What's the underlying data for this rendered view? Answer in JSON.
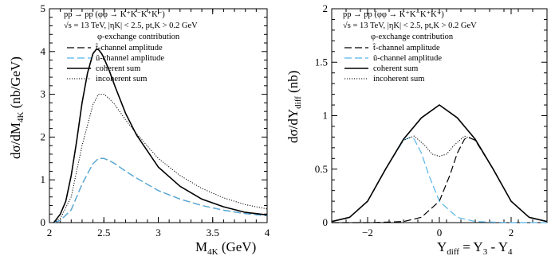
{
  "chart_data": [
    {
      "type": "line",
      "xlabel": "M4K (GeV)",
      "xlabel_main": "M",
      "xlabel_sub": "4K",
      "xlabel_unit": " (GeV)",
      "ylabel_main": "dσ/dM",
      "ylabel_sub": "4K",
      "ylabel_unit": " (nb/GeV)",
      "xlim": [
        2,
        4
      ],
      "ylim": [
        0,
        5
      ],
      "xticks": [
        "2",
        "2.5",
        "3",
        "3.5",
        "4"
      ],
      "yticks": [
        "0",
        "1",
        "2",
        "3",
        "4",
        "5"
      ],
      "legend_position": "top-left",
      "info": {
        "process": "pp → pp (φφ → K⁺K⁻K⁺K⁻)",
        "cuts": "√s = 13 TeV, |ηK| < 2.5, pt,K > 0.2 GeV",
        "subtitle": "φ-exchange contribution"
      },
      "series": [
        {
          "name": "t̂-channel amplitude",
          "style": "dashed",
          "color": "#000000",
          "x": [
            2.04,
            2.1,
            2.2,
            2.3,
            2.4,
            2.45,
            2.5,
            2.55,
            2.6,
            2.7,
            2.8,
            3.0,
            3.2,
            3.4,
            3.6,
            3.8,
            4.0
          ],
          "y": [
            0.0,
            0.05,
            0.3,
            0.9,
            1.38,
            1.5,
            1.5,
            1.45,
            1.38,
            1.2,
            1.04,
            0.75,
            0.55,
            0.4,
            0.29,
            0.21,
            0.16
          ]
        },
        {
          "name": "û-channel amplitude",
          "style": "dashed",
          "color": "#56b4e9",
          "x": [
            2.04,
            2.1,
            2.2,
            2.3,
            2.4,
            2.45,
            2.5,
            2.55,
            2.6,
            2.7,
            2.8,
            3.0,
            3.2,
            3.4,
            3.6,
            3.8,
            4.0
          ],
          "y": [
            0.0,
            0.05,
            0.3,
            0.9,
            1.38,
            1.5,
            1.5,
            1.45,
            1.38,
            1.2,
            1.04,
            0.75,
            0.55,
            0.4,
            0.29,
            0.21,
            0.16
          ]
        },
        {
          "name": "coherent sum",
          "style": "solid",
          "color": "#000000",
          "x": [
            2.04,
            2.1,
            2.15,
            2.2,
            2.25,
            2.3,
            2.35,
            2.4,
            2.43,
            2.45,
            2.48,
            2.5,
            2.55,
            2.6,
            2.7,
            2.8,
            3.0,
            3.2,
            3.4,
            3.6,
            3.8,
            4.0
          ],
          "y": [
            0.0,
            0.2,
            0.5,
            1.1,
            1.9,
            2.8,
            3.5,
            3.95,
            4.05,
            4.05,
            3.95,
            3.85,
            3.55,
            3.2,
            2.55,
            2.05,
            1.3,
            0.85,
            0.55,
            0.37,
            0.24,
            0.18
          ]
        },
        {
          "name": "incoherent sum",
          "style": "dotted",
          "color": "#000000",
          "x": [
            2.04,
            2.1,
            2.2,
            2.3,
            2.4,
            2.45,
            2.5,
            2.55,
            2.6,
            2.7,
            2.8,
            3.0,
            3.2,
            3.4,
            3.6,
            3.8,
            4.0
          ],
          "y": [
            0.0,
            0.1,
            0.6,
            1.8,
            2.76,
            3.0,
            3.0,
            2.9,
            2.76,
            2.4,
            2.08,
            1.5,
            1.1,
            0.8,
            0.58,
            0.42,
            0.32
          ]
        }
      ]
    },
    {
      "type": "line",
      "xlabel": "Ydiff = Y3 - Y4",
      "xlabel_main": "Y",
      "xlabel_sub": "diff",
      "xlabel_unit": " = Y",
      "xlabel_sub2": "3",
      "xlabel_unit2": " - Y",
      "xlabel_sub3": "4",
      "ylabel_main": "dσ/dY",
      "ylabel_sub": "diff",
      "ylabel_unit": " (nb)",
      "xlim": [
        -3,
        3
      ],
      "ylim": [
        0,
        2
      ],
      "xticks": [
        "−2",
        "0",
        "2"
      ],
      "xtick_values": [
        -2,
        0,
        2
      ],
      "yticks": [
        "0",
        "0.5",
        "1",
        "1.5",
        "2"
      ],
      "legend_position": "top-left",
      "info": {
        "process": "pp → pp (φφ → K⁺K⁻K⁺K⁻)",
        "cuts": "√s = 13 TeV, |ηK| < 2.5, pt,K > 0.2 GeV",
        "subtitle": "φ-exchange contribution"
      },
      "series": [
        {
          "name": "t̂-channel amplitude",
          "style": "dashed",
          "color": "#000000",
          "x": [
            -3,
            -2.0,
            -1.0,
            -0.5,
            0.0,
            0.3,
            0.5,
            0.7,
            0.8,
            1.0,
            1.5,
            2.0,
            2.5,
            3.0
          ],
          "y": [
            0.0,
            0.0,
            0.01,
            0.05,
            0.2,
            0.45,
            0.65,
            0.78,
            0.8,
            0.77,
            0.5,
            0.2,
            0.05,
            0.01
          ]
        },
        {
          "name": "û-channel amplitude",
          "style": "dashed",
          "color": "#56b4e9",
          "x": [
            -3,
            -2.5,
            -2.0,
            -1.5,
            -1.0,
            -0.8,
            -0.7,
            -0.5,
            -0.3,
            0.0,
            0.5,
            1.0,
            2.0,
            3.0
          ],
          "y": [
            0.01,
            0.05,
            0.2,
            0.5,
            0.77,
            0.8,
            0.78,
            0.65,
            0.45,
            0.2,
            0.05,
            0.01,
            0.0,
            0.0
          ]
        },
        {
          "name": "coherent sum",
          "style": "solid",
          "color": "#000000",
          "x": [
            -3,
            -2.5,
            -2.0,
            -1.5,
            -1.0,
            -0.5,
            0.0,
            0.5,
            1.0,
            1.5,
            2.0,
            2.5,
            3.0
          ],
          "y": [
            0.01,
            0.05,
            0.2,
            0.5,
            0.78,
            0.98,
            1.1,
            0.98,
            0.78,
            0.5,
            0.2,
            0.05,
            0.01
          ]
        },
        {
          "name": "incoherent sum",
          "style": "dotted",
          "color": "#000000",
          "x": [
            -3,
            -2.5,
            -2.0,
            -1.5,
            -1.0,
            -0.7,
            -0.4,
            -0.2,
            0.0,
            0.2,
            0.4,
            0.7,
            1.0,
            1.5,
            2.0,
            2.5,
            3.0
          ],
          "y": [
            0.01,
            0.05,
            0.2,
            0.5,
            0.77,
            0.81,
            0.72,
            0.64,
            0.62,
            0.64,
            0.72,
            0.81,
            0.77,
            0.5,
            0.2,
            0.05,
            0.01
          ]
        }
      ]
    }
  ]
}
